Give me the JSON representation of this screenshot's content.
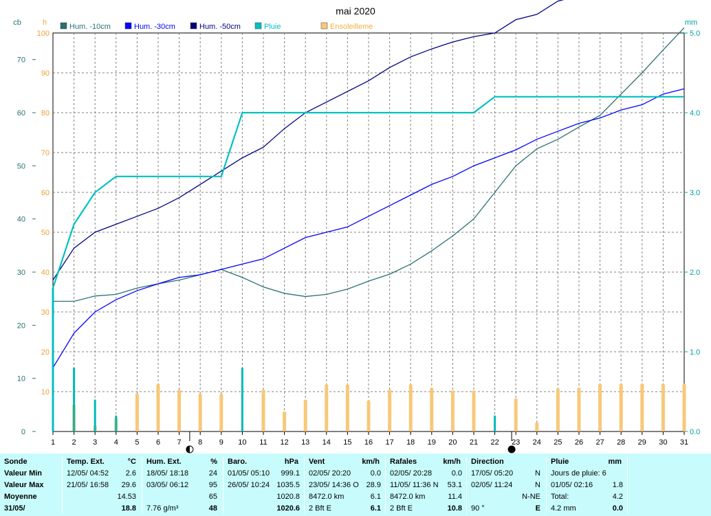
{
  "chart_data": {
    "type": "line",
    "title": "mai 2020",
    "x": [
      1,
      2,
      3,
      4,
      5,
      6,
      7,
      8,
      9,
      10,
      11,
      12,
      13,
      14,
      15,
      16,
      17,
      18,
      19,
      20,
      21,
      22,
      23,
      24,
      25,
      26,
      27,
      28,
      29,
      30,
      31
    ],
    "xlim": [
      1,
      31
    ],
    "axes": {
      "cb": {
        "label": "cb",
        "ylim": [
          0,
          75
        ],
        "ticks": [
          0,
          10,
          20,
          30,
          40,
          50,
          60,
          70
        ]
      },
      "h": {
        "label": "h",
        "ylim": [
          0,
          100
        ],
        "ticks": [
          10,
          20,
          30,
          40,
          50,
          60,
          70,
          80,
          90,
          100
        ]
      },
      "mm": {
        "label": "mm",
        "ylim": [
          0,
          5
        ],
        "ticks": [
          "0.0",
          "1.0",
          "2.0",
          "3.0",
          "4.0",
          "5.0"
        ]
      }
    },
    "grid": true,
    "legend_position": "top",
    "series": [
      {
        "name": "Hum. -10cm",
        "axis": "cb",
        "color": "#2a7070",
        "values": [
          24.5,
          24.5,
          25.5,
          25.8,
          27,
          27.8,
          28.5,
          29.5,
          30.5,
          29,
          27.2,
          26,
          25.4,
          25.8,
          26.8,
          28.3,
          29.6,
          31.5,
          34,
          36.8,
          40,
          45,
          50,
          53.2,
          55,
          57.3,
          59.5,
          63.5,
          67.5,
          71.8,
          76
        ]
      },
      {
        "name": "Hum. -30cm",
        "axis": "cb",
        "color": "#0000ff",
        "values": [
          12,
          18.5,
          22.5,
          24.8,
          26.5,
          27.8,
          29,
          29.5,
          30.5,
          31.5,
          32.5,
          34.5,
          36.5,
          37.5,
          38.5,
          40.5,
          42.5,
          44.5,
          46.5,
          48,
          50,
          51.5,
          53,
          55,
          56.5,
          58,
          59,
          60.5,
          61.5,
          63.5,
          64.5
        ]
      },
      {
        "name": "Hum. -50cm",
        "axis": "cb",
        "color": "#000080",
        "values": [
          28.5,
          34.5,
          37.5,
          39,
          40.5,
          42,
          44,
          46.5,
          49,
          51.5,
          53.5,
          57,
          60,
          62,
          64,
          66,
          68.5,
          70.5,
          72,
          73.3,
          74.3,
          75,
          77.5,
          78.5,
          81,
          82,
          83,
          83.2,
          84,
          84.6,
          84.3
        ]
      },
      {
        "name": "Pluie",
        "axis": "mm",
        "color": "#00c0c0",
        "values": [
          1.8,
          2.6,
          3.0,
          3.2,
          3.2,
          3.2,
          3.2,
          3.2,
          3.2,
          4.0,
          4.0,
          4.0,
          4.0,
          4.0,
          4.0,
          4.0,
          4.0,
          4.0,
          4.0,
          4.0,
          4.0,
          4.2,
          4.2,
          4.2,
          4.2,
          4.2,
          4.2,
          4.2,
          4.2,
          4.2,
          4.2
        ],
        "daily": [
          1.8,
          0.8,
          0.4,
          0.2,
          0,
          0,
          0,
          0,
          0,
          0.8,
          0,
          0,
          0,
          0,
          0,
          0,
          0,
          0,
          0,
          0,
          0,
          0.2,
          0,
          0,
          0,
          0,
          0,
          0,
          0,
          0,
          0
        ]
      },
      {
        "name": "Ensoleilleme",
        "axis": "h",
        "type": "bar",
        "color": "#f8c878",
        "values": [
          0,
          6.8,
          1.5,
          3.5,
          9.5,
          12,
          10.5,
          9.5,
          9.5,
          0,
          10.5,
          5,
          8,
          11.8,
          11.8,
          7.8,
          10.5,
          11.8,
          11,
          10.3,
          10.3,
          0,
          8.3,
          2.3,
          10.8,
          11,
          12,
          12,
          12,
          12,
          12
        ]
      }
    ],
    "markers": [
      {
        "x": 7.5,
        "symbol": "first-quarter-moon"
      },
      {
        "x": 22.8,
        "symbol": "new-moon"
      }
    ]
  },
  "stats": {
    "sonde": {
      "title": "Sonde",
      "rows": [
        "Valeur Min",
        "Valeur Max",
        "Moyenne",
        "31/05/"
      ]
    },
    "temp": {
      "title": "Temp. Ext.",
      "unit": "°C",
      "rows": [
        [
          "12/05/  04:52",
          "2.6"
        ],
        [
          "21/05/  16:58",
          "29.6"
        ],
        [
          "",
          "14.53"
        ],
        [
          "",
          "18.8"
        ]
      ]
    },
    "hum": {
      "title": "Hum. Ext.",
      "unit": "%",
      "rows": [
        [
          "18/05/  18:18",
          "24"
        ],
        [
          "03/05/  06:12",
          "95"
        ],
        [
          "",
          "65"
        ],
        [
          "7.76 g/m³",
          "48"
        ]
      ]
    },
    "baro": {
      "title": "Baro.",
      "unit": "hPa",
      "rows": [
        [
          "01/05/  05:10",
          "999.1"
        ],
        [
          "26/05/  10:24",
          "1035.5"
        ],
        [
          "",
          "1020.8"
        ],
        [
          "",
          "1020.6"
        ]
      ]
    },
    "vent": {
      "title": "Vent",
      "unit": "km/h",
      "rows": [
        [
          "02/05/  20:20",
          "0.0"
        ],
        [
          "23/05/  14:36  O",
          "28.9"
        ],
        [
          "8472.0 km",
          "6.1"
        ],
        [
          "2 Bft E",
          "6.1"
        ]
      ]
    },
    "rafales": {
      "title": "Rafales",
      "unit": "km/h",
      "rows": [
        [
          "02/05/  20:28",
          "0.0"
        ],
        [
          "11/05/  11:36  N",
          "53.1"
        ],
        [
          "8472.0 km",
          "11.4"
        ],
        [
          "2 Bft E",
          "10.8"
        ]
      ]
    },
    "direction": {
      "title": "Direction",
      "unit": "",
      "rows": [
        [
          "17/05/  05:20",
          "N"
        ],
        [
          "02/05/  11:24",
          "N"
        ],
        [
          "",
          "N-NE"
        ],
        [
          "90 °",
          "E"
        ]
      ]
    },
    "pluie": {
      "title": "Pluie",
      "unit": "mm",
      "rows": [
        [
          "Jours de pluie: 6",
          ""
        ],
        [
          "01/05/  02:16",
          "1.8"
        ],
        [
          "Total:",
          "4.2"
        ],
        [
          "4.2 mm",
          "0.0"
        ]
      ]
    }
  }
}
